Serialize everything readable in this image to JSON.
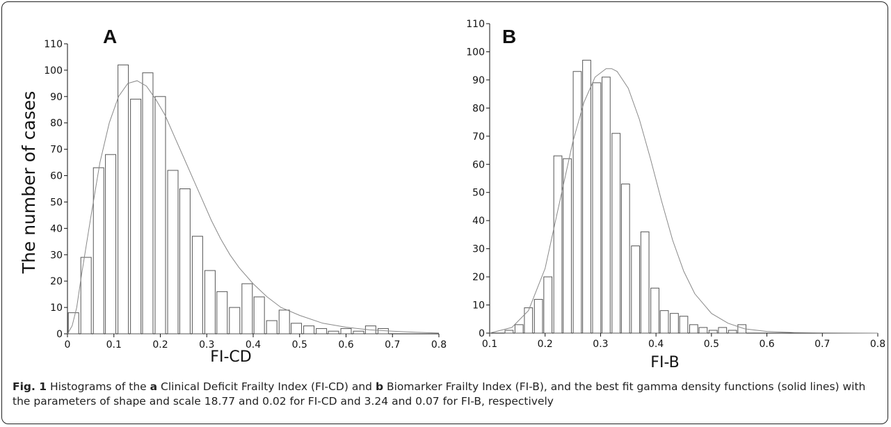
{
  "figure": {
    "ylabel": "The number of cases",
    "caption_label": "Fig. 1",
    "caption_parts": [
      " Histograms of the ",
      "a",
      " Clinical Deficit Frailty Index (FI-CD) and ",
      "b",
      " Biomarker Frailty Index (FI-B), and the best fit gamma density functions (solid lines) with the parameters of shape and scale 18.77 and 0.02 for FI-CD and 3.24 and 0.07 for FI-B, respectively"
    ]
  },
  "chart_data": [
    {
      "type": "bar",
      "panel_label": "A",
      "xlabel": "FI-CD",
      "xlim": [
        0,
        0.8
      ],
      "ylim": [
        0,
        110
      ],
      "xticks": [
        "0",
        "0.1",
        "0.2",
        "0.3",
        "0.4",
        "0.5",
        "0.6",
        "0.7",
        "0.8"
      ],
      "yticks": [
        "0",
        "10",
        "20",
        "30",
        "40",
        "50",
        "60",
        "70",
        "80",
        "90",
        "100",
        "110"
      ],
      "bin_width": 0.0267,
      "bin_centers": [
        0.013,
        0.04,
        0.067,
        0.093,
        0.12,
        0.147,
        0.173,
        0.2,
        0.227,
        0.253,
        0.28,
        0.307,
        0.333,
        0.36,
        0.387,
        0.413,
        0.44,
        0.467,
        0.493,
        0.52,
        0.547,
        0.573,
        0.6,
        0.627,
        0.653,
        0.68,
        0.707
      ],
      "values": [
        8,
        29,
        63,
        68,
        102,
        89,
        99,
        90,
        62,
        55,
        37,
        24,
        16,
        10,
        19,
        14,
        5,
        9,
        4,
        3,
        2,
        1,
        2,
        1,
        3,
        2,
        0
      ],
      "fit_curve": {
        "x": [
          0,
          0.01,
          0.02,
          0.03,
          0.05,
          0.07,
          0.09,
          0.11,
          0.13,
          0.15,
          0.17,
          0.19,
          0.21,
          0.23,
          0.25,
          0.27,
          0.29,
          0.31,
          0.33,
          0.35,
          0.37,
          0.4,
          0.43,
          0.46,
          0.5,
          0.55,
          0.6,
          0.65,
          0.7,
          0.75,
          0.8
        ],
        "y": [
          0,
          3,
          10,
          22,
          44,
          65,
          80,
          90,
          95,
          96,
          94,
          89,
          83,
          75,
          67,
          59,
          51,
          43,
          36,
          30,
          25,
          19,
          14,
          10,
          7,
          4,
          2.5,
          1.5,
          1,
          0.6,
          0.3
        ]
      }
    },
    {
      "type": "bar",
      "panel_label": "B",
      "xlabel": "FI-B",
      "xlim": [
        0.1,
        0.8
      ],
      "ylim": [
        0,
        110
      ],
      "xticks": [
        "0.1",
        "0.2",
        "0.3",
        "0.4",
        "0.5",
        "0.6",
        "0.7",
        "0.8"
      ],
      "yticks": [
        "0",
        "10",
        "20",
        "30",
        "40",
        "50",
        "60",
        "70",
        "80",
        "90",
        "100",
        "110"
      ],
      "bin_width": 0.0175,
      "bin_centers": [
        0.118,
        0.135,
        0.153,
        0.17,
        0.188,
        0.205,
        0.223,
        0.24,
        0.258,
        0.275,
        0.293,
        0.31,
        0.328,
        0.345,
        0.363,
        0.38,
        0.398,
        0.415,
        0.433,
        0.45,
        0.468,
        0.485,
        0.503,
        0.52,
        0.538,
        0.555,
        0.573,
        0.59,
        0.608,
        0.625,
        0.643
      ],
      "values": [
        0,
        1,
        3,
        9,
        12,
        20,
        63,
        62,
        93,
        97,
        89,
        91,
        71,
        53,
        31,
        36,
        16,
        8,
        7,
        6,
        3,
        2,
        1,
        2,
        1,
        3,
        0,
        0,
        0,
        0,
        0
      ],
      "fit_curve": {
        "x": [
          0.1,
          0.14,
          0.17,
          0.2,
          0.23,
          0.25,
          0.27,
          0.29,
          0.31,
          0.32,
          0.33,
          0.35,
          0.37,
          0.39,
          0.41,
          0.43,
          0.45,
          0.47,
          0.5,
          0.53,
          0.56,
          0.6,
          0.65,
          0.7,
          0.8
        ],
        "y": [
          0,
          2,
          8,
          23,
          50,
          68,
          82,
          91,
          94,
          94,
          93,
          87,
          76,
          62,
          47,
          33,
          22,
          14,
          7,
          3.5,
          1.5,
          0.6,
          0.2,
          0.1,
          0
        ]
      }
    }
  ]
}
